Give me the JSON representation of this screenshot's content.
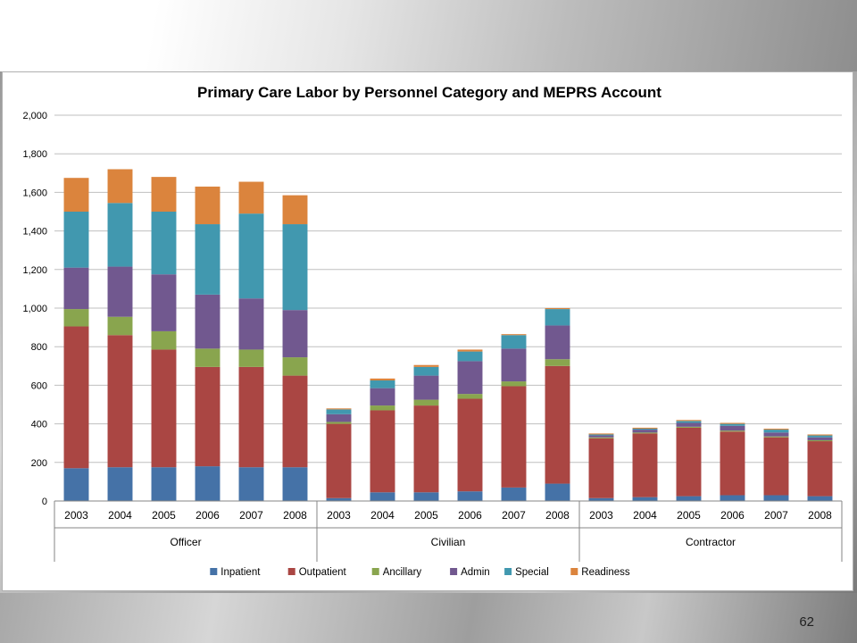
{
  "slide": {
    "page_number": "62"
  },
  "chart_data": {
    "type": "bar",
    "stacked": true,
    "title": "Primary Care Labor by Personnel Category and MEPRS Account",
    "ylim": [
      0,
      2000
    ],
    "ytick_step": 200,
    "grid": true,
    "legend_position": "bottom",
    "groups": [
      {
        "name": "Officer",
        "categories": [
          "2003",
          "2004",
          "2005",
          "2006",
          "2007",
          "2008"
        ]
      },
      {
        "name": "Civilian",
        "categories": [
          "2003",
          "2004",
          "2005",
          "2006",
          "2007",
          "2008"
        ]
      },
      {
        "name": "Contractor",
        "categories": [
          "2003",
          "2004",
          "2005",
          "2006",
          "2007",
          "2008"
        ]
      }
    ],
    "series": [
      {
        "name": "Inpatient",
        "color": "#4572a7",
        "values": [
          170,
          175,
          175,
          180,
          175,
          175,
          15,
          45,
          45,
          50,
          70,
          90,
          15,
          20,
          25,
          30,
          30,
          25
        ]
      },
      {
        "name": "Outpatient",
        "color": "#aa4643",
        "values": [
          735,
          685,
          610,
          515,
          520,
          475,
          385,
          425,
          450,
          480,
          525,
          610,
          310,
          330,
          355,
          330,
          300,
          285
        ]
      },
      {
        "name": "Ancillary",
        "color": "#89a54e",
        "values": [
          90,
          95,
          95,
          95,
          90,
          95,
          10,
          25,
          30,
          25,
          25,
          35,
          5,
          5,
          5,
          5,
          5,
          5
        ]
      },
      {
        "name": "Admin",
        "color": "#71588f",
        "values": [
          215,
          260,
          295,
          280,
          265,
          245,
          40,
          90,
          125,
          170,
          170,
          175,
          10,
          15,
          20,
          25,
          20,
          15
        ]
      },
      {
        "name": "Special",
        "color": "#4198af",
        "values": [
          290,
          330,
          325,
          365,
          440,
          445,
          25,
          40,
          45,
          50,
          70,
          85,
          5,
          5,
          10,
          10,
          15,
          10
        ]
      },
      {
        "name": "Readiness",
        "color": "#db843d",
        "values": [
          175,
          175,
          180,
          195,
          165,
          150,
          5,
          10,
          10,
          10,
          5,
          5,
          5,
          5,
          5,
          5,
          5,
          5
        ]
      }
    ]
  }
}
